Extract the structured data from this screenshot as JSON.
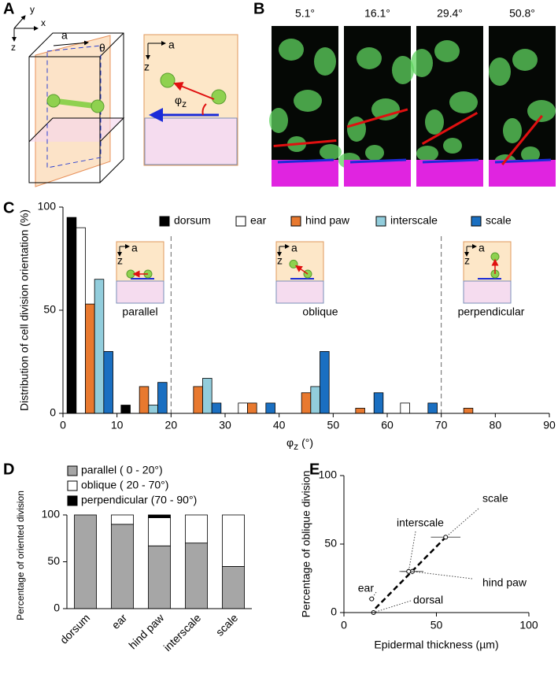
{
  "panel_a": {
    "panel": "A",
    "axes": {
      "x": "x",
      "y": "y",
      "z": "z"
    },
    "vector": "a",
    "angle": "θ",
    "inset": {
      "a": "a",
      "z": "z",
      "phi": "φ",
      "phi_sub": "z"
    }
  },
  "panel_b": {
    "panel": "B",
    "values": [
      5.1,
      16.1,
      29.4,
      50.8
    ],
    "value_labels": [
      "5.1°",
      "16.1°",
      "29.4°",
      "50.8°"
    ]
  },
  "chart_data": [
    {
      "type": "histogram",
      "panel": "C",
      "ylabel": "Distribution of cell division orientation (%)",
      "xlabel": {
        "symbol": "φ",
        "subscript": "z",
        "unit": "(°)"
      },
      "bins": [
        0,
        10,
        20,
        30,
        40,
        50,
        60,
        70,
        80,
        90
      ],
      "series": [
        {
          "name": "dorsum",
          "color": "#000000",
          "values": [
            95,
            4,
            0,
            0,
            0,
            0,
            0,
            0,
            0
          ]
        },
        {
          "name": "ear",
          "color": "#ffffff",
          "values": [
            90,
            0,
            0,
            5,
            0,
            0,
            5,
            0,
            0
          ]
        },
        {
          "name": "hind paw",
          "color": "#e8792f",
          "values": [
            53,
            13,
            13,
            5,
            10,
            2.5,
            0,
            2.5,
            0
          ]
        },
        {
          "name": "interscale",
          "color": "#92cddc",
          "values": [
            65,
            4,
            17,
            0,
            13,
            0,
            0,
            0,
            0
          ]
        },
        {
          "name": "scale",
          "color": "#1a6fc1",
          "values": [
            30,
            15,
            5,
            5,
            30,
            10,
            5,
            0,
            0
          ]
        }
      ],
      "xlim": [
        0,
        90
      ],
      "xticks": [
        0,
        10,
        20,
        30,
        40,
        50,
        60,
        70,
        80,
        90
      ],
      "ylim": [
        0,
        100
      ],
      "yticks": [
        0,
        50,
        100
      ],
      "dividers": [
        20,
        70
      ],
      "annotations": [
        "parallel",
        "oblique",
        "perpendicular"
      ],
      "inset_labels": {
        "a": "a",
        "z": "z"
      }
    },
    {
      "type": "stacked-bar",
      "panel": "D",
      "ylabel": "Percentage of oriented division",
      "categories": [
        "dorsum",
        "ear",
        "hind paw",
        "interscale",
        "scale"
      ],
      "series": [
        {
          "name": "parallel ( 0 - 20°)",
          "color": "#a6a6a6",
          "values": [
            100,
            90,
            67,
            70,
            45
          ]
        },
        {
          "name": "oblique ( 20 - 70°)",
          "color": "#ffffff",
          "values": [
            0,
            10,
            30,
            30,
            55
          ]
        },
        {
          "name": "perpendicular (70 - 90°)",
          "color": "#000000",
          "values": [
            0,
            0,
            3,
            0,
            0
          ]
        }
      ],
      "ylim": [
        0,
        100
      ],
      "yticks": [
        0,
        50,
        100
      ]
    },
    {
      "type": "scatter",
      "panel": "E",
      "xlabel": "Epidermal thickness (µm)",
      "ylabel": "Percentage of oblique division",
      "labels": [
        "dorsal",
        "ear",
        "hind paw",
        "interscale",
        "scale"
      ],
      "x": [
        16,
        15,
        37,
        35,
        55
      ],
      "y": [
        0,
        10,
        30,
        30,
        55
      ],
      "xerr": [
        1,
        1.5,
        6,
        5,
        8
      ],
      "yerr": [
        0,
        1,
        2,
        2,
        1
      ],
      "fit_line": {
        "x": [
          17,
          55
        ],
        "y": [
          3,
          55
        ]
      },
      "xlim": [
        0,
        100
      ],
      "xticks": [
        0,
        50,
        100
      ],
      "ylim": [
        0,
        100
      ],
      "yticks": [
        0,
        50,
        100
      ]
    }
  ]
}
